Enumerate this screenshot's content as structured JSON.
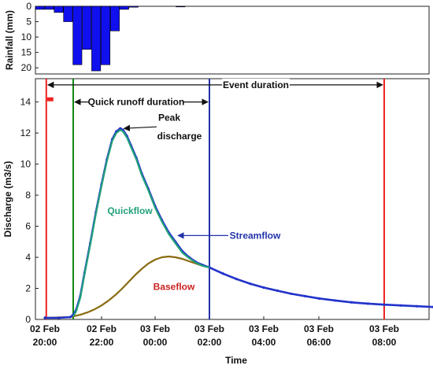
{
  "chart_data": [
    {
      "type": "bar",
      "panel": "rainfall",
      "ylabel": "Rainfall (mm)",
      "yaxis_inverted": true,
      "ylim": [
        0,
        22
      ],
      "yticks": [
        "0",
        "5",
        "10",
        "15",
        "20"
      ],
      "bar_color": "#1010ee",
      "bar_width_hours": 0.25,
      "bars": [
        {
          "t": 20.0,
          "v": 1
        },
        {
          "t": 20.25,
          "v": 1
        },
        {
          "t": 20.5,
          "v": 2
        },
        {
          "t": 20.75,
          "v": 5
        },
        {
          "t": 21.0,
          "v": 19
        },
        {
          "t": 21.25,
          "v": 14
        },
        {
          "t": 21.5,
          "v": 21
        },
        {
          "t": 21.75,
          "v": 19
        },
        {
          "t": 22.0,
          "v": 8
        },
        {
          "t": 22.25,
          "v": 1
        },
        {
          "t": 22.5,
          "v": 0.3
        },
        {
          "t": 23.75,
          "v": 0.2
        }
      ]
    },
    {
      "type": "line",
      "panel": "discharge",
      "xlabel": "Time",
      "ylabel": "Discharge (m3/s)",
      "ylim": [
        0,
        15.5
      ],
      "yticks": [
        "0",
        "2",
        "4",
        "6",
        "8",
        "10",
        "12",
        "14"
      ],
      "xlim_hours": [
        20,
        30.5
      ],
      "xticks": [
        {
          "t": 20,
          "line1": "02 Feb",
          "line2": "20:00"
        },
        {
          "t": 22,
          "line1": "02 Feb",
          "line2": "22:00"
        },
        {
          "t": 24,
          "line1": "03 Feb",
          "line2": "00:00"
        },
        {
          "t": 26,
          "line1": "03 Feb",
          "line2": "02:00"
        },
        {
          "t": 28,
          "line1": "03 Feb",
          "line2": "04:00"
        },
        {
          "t": 30,
          "line1": "03 Feb",
          "line2": "06:00"
        },
        {
          "t": 32,
          "line1": "03 Feb",
          "line2": "08:00"
        }
      ],
      "colors": {
        "streamflow": "#2233cc",
        "quickflow": "#22a07a",
        "baseflow": "#8a6a10",
        "event_line": "#ee2222",
        "quick_runoff_line": "#118811",
        "quick_runoff_end_line": "#2233aa"
      },
      "series": [
        {
          "name": "Streamflow",
          "x": [
            20,
            20.5,
            20.9,
            21.0,
            21.1,
            21.25,
            21.4,
            21.6,
            21.8,
            22.0,
            22.2,
            22.4,
            22.55,
            22.7,
            22.8,
            22.95,
            23.1,
            23.3,
            23.5,
            23.75,
            24.0,
            24.25,
            24.5,
            24.75,
            25.0,
            25.25,
            25.5,
            25.75,
            26.0,
            26.5,
            27.0,
            27.5,
            28.0,
            28.5,
            29.0,
            29.5,
            30.0,
            30.5,
            31.0,
            31.5,
            32.0,
            32.5,
            33.0,
            33.5,
            34.0
          ],
          "y": [
            0.1,
            0.1,
            0.15,
            0.3,
            0.6,
            1.5,
            3.0,
            4.9,
            6.9,
            8.7,
            10.3,
            11.6,
            12.1,
            12.3,
            12.2,
            11.8,
            11.2,
            10.4,
            9.4,
            8.4,
            7.3,
            6.4,
            5.6,
            5.0,
            4.4,
            4.0,
            3.7,
            3.5,
            3.35,
            2.95,
            2.6,
            2.3,
            2.05,
            1.85,
            1.65,
            1.5,
            1.35,
            1.22,
            1.1,
            1.02,
            0.95,
            0.9,
            0.85,
            0.8,
            0.75
          ]
        },
        {
          "name": "Quickflow",
          "x": [
            21.0,
            21.1,
            21.25,
            21.4,
            21.6,
            21.8,
            22.0,
            22.2,
            22.4,
            22.55,
            22.7,
            22.8,
            22.95,
            23.1,
            23.3,
            23.5,
            23.75,
            24.0,
            24.25,
            24.5,
            24.75,
            25.0,
            25.25,
            25.5,
            25.75,
            26.0
          ],
          "y": [
            0.2,
            0.5,
            1.4,
            2.9,
            4.8,
            6.8,
            8.6,
            10.2,
            11.5,
            12.0,
            12.2,
            12.1,
            11.7,
            11.1,
            10.3,
            9.3,
            8.3,
            7.2,
            6.3,
            5.5,
            4.9,
            4.3,
            3.95,
            3.65,
            3.45,
            3.35
          ]
        },
        {
          "name": "Baseflow",
          "x": [
            20,
            20.9,
            21.0,
            21.25,
            21.5,
            21.75,
            22.0,
            22.25,
            22.5,
            22.75,
            23.0,
            23.25,
            23.5,
            23.75,
            24.0,
            24.25,
            24.5,
            24.75,
            25.0,
            25.25,
            25.5,
            25.75,
            26.0,
            26.5,
            27.0,
            27.5,
            28.0,
            28.5,
            29.0,
            29.5,
            30.0,
            30.5,
            31.0,
            31.5,
            32.0
          ],
          "y": [
            0.1,
            0.15,
            0.2,
            0.3,
            0.45,
            0.65,
            0.9,
            1.2,
            1.55,
            1.95,
            2.4,
            2.85,
            3.25,
            3.6,
            3.85,
            4.0,
            4.05,
            4.0,
            3.9,
            3.75,
            3.6,
            3.45,
            3.35,
            2.95,
            2.6,
            2.3,
            2.05,
            1.85,
            1.65,
            1.5,
            1.35,
            1.22,
            1.1,
            1.02,
            0.95
          ]
        }
      ],
      "vertical_lines": [
        {
          "t": 20.05,
          "role": "event_start"
        },
        {
          "t": 21.0,
          "role": "quick_runoff_start"
        },
        {
          "t": 26.0,
          "role": "quick_runoff_end"
        },
        {
          "t": 32.0,
          "role": "event_end"
        }
      ],
      "annotations": {
        "event_duration": "Event duration",
        "quick_runoff_duration": "Quick runoff duration",
        "peak_line1": "Peak",
        "peak_line2": "discharge",
        "quickflow": "Quickflow",
        "streamflow": "Streamflow",
        "baseflow": "Baseflow"
      }
    }
  ]
}
